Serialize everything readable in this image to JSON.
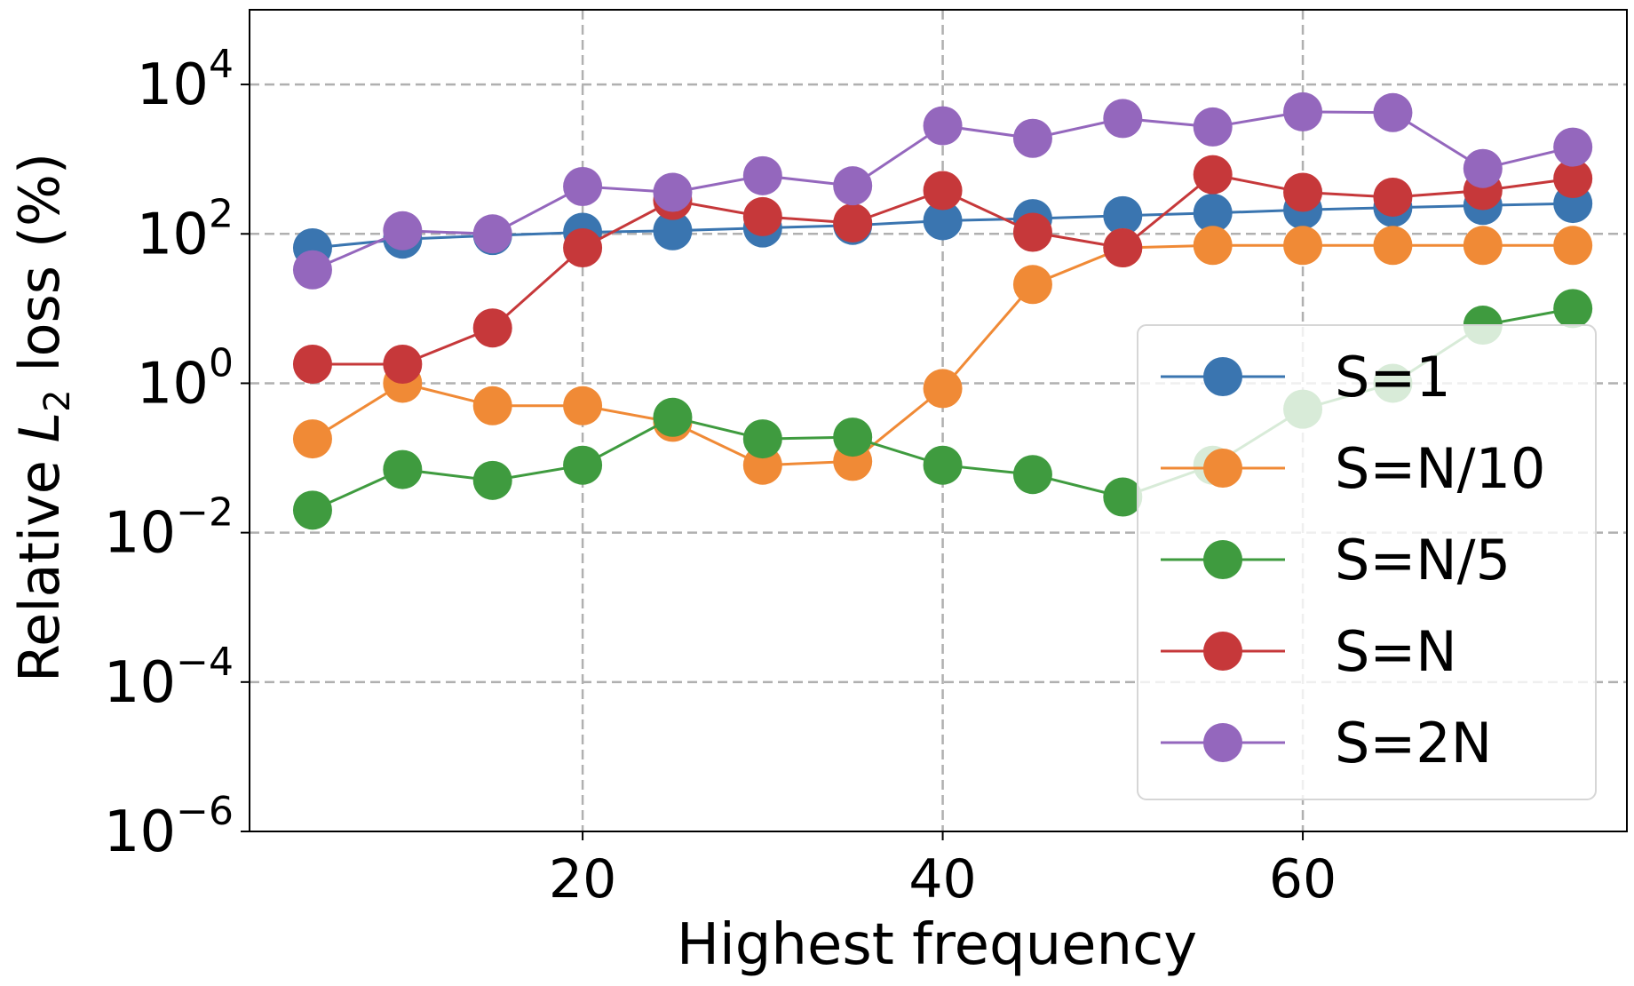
{
  "chart_data": {
    "type": "line",
    "yscale": "log",
    "title": "",
    "xlabel": "Highest frequency",
    "ylabel": {
      "prefix": "Relative ",
      "var": "L",
      "sub": "2",
      "suffix": " loss (%)"
    },
    "xlim": [
      1.5,
      78
    ],
    "ylim_exponent": [
      -6,
      5
    ],
    "x_ticks": [
      20,
      40,
      60
    ],
    "y_ticks": [
      {
        "base": "10",
        "exp": "4",
        "value": 10000
      },
      {
        "base": "10",
        "exp": "2",
        "value": 100
      },
      {
        "base": "10",
        "exp": "0",
        "value": 1
      },
      {
        "base": "10",
        "exp": "−2",
        "value": 0.01
      },
      {
        "base": "10",
        "exp": "−4",
        "value": 0.0001
      },
      {
        "base": "10",
        "exp": "−6",
        "value": 1e-06
      }
    ],
    "grid": true,
    "legend_position": "lower-right",
    "x": [
      5,
      10,
      15,
      20,
      25,
      30,
      35,
      40,
      45,
      50,
      55,
      60,
      65,
      70,
      75
    ],
    "series": [
      {
        "name": "S=1",
        "color": "#3a75b0",
        "values": [
          65,
          85,
          95,
          105,
          110,
          120,
          130,
          150,
          160,
          175,
          190,
          210,
          225,
          240,
          255
        ]
      },
      {
        "name": "S=N/10",
        "color": "#f08a36",
        "values": [
          0.18,
          1.0,
          0.5,
          0.5,
          0.3,
          0.08,
          0.09,
          0.85,
          21,
          65,
          70,
          70,
          70,
          70,
          70
        ]
      },
      {
        "name": "S=N/5",
        "color": "#3f9b3f",
        "values": [
          0.02,
          0.07,
          0.05,
          0.08,
          0.35,
          0.18,
          0.19,
          0.08,
          0.06,
          0.03,
          0.08,
          0.45,
          1.0,
          6.0,
          10.0
        ]
      },
      {
        "name": "S=N",
        "color": "#c6383a",
        "values": [
          1.8,
          1.8,
          5.5,
          65,
          280,
          170,
          140,
          380,
          105,
          65,
          620,
          360,
          310,
          380,
          550
        ]
      },
      {
        "name": "S=2N",
        "color": "#9467bd",
        "values": [
          33,
          110,
          100,
          430,
          360,
          600,
          440,
          2800,
          1900,
          3500,
          2700,
          4300,
          4200,
          750,
          1450
        ]
      }
    ]
  }
}
